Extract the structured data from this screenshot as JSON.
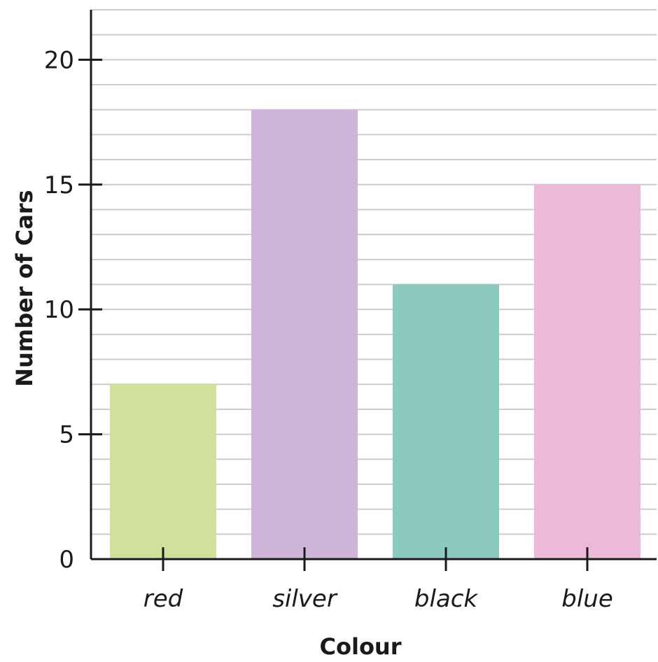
{
  "chart_data": {
    "type": "bar",
    "categories": [
      "red",
      "silver",
      "black",
      "blue"
    ],
    "values": [
      7,
      18,
      11,
      15
    ],
    "colors": [
      "#d1e09b",
      "#cfb4d9",
      "#8ccac0",
      "#ecbad8"
    ],
    "title": "",
    "xlabel": "Colour",
    "ylabel": "Number of Cars",
    "ylim": [
      0,
      22
    ],
    "yticks": [
      0,
      5,
      10,
      15,
      20
    ],
    "minor_grid_step": 1,
    "grid": true,
    "gridline_color": "#cccccc",
    "axis_color": "#1a1a1a"
  }
}
